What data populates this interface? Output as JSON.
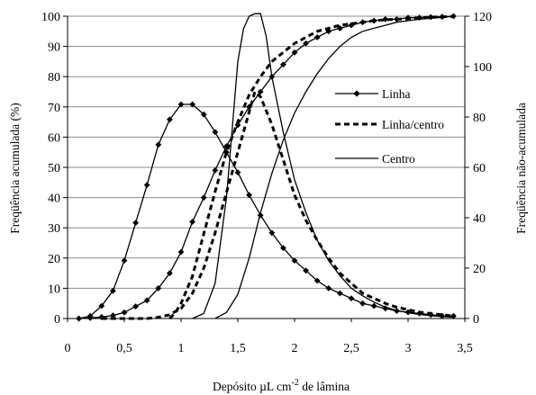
{
  "chart_data": {
    "type": "line",
    "xlabel": "Depósito µL cm-2 de lâmina",
    "xlabel_parts": {
      "pre": "Depósito µL cm",
      "sup": "-2",
      "post": " de lâmina"
    },
    "ylabel_left": "Freqüência acumulada (%)",
    "ylabel_right": "Freqüência não-acumulada",
    "xlim": [
      0,
      3.5
    ],
    "ylim_left": [
      0,
      100
    ],
    "ylim_right": [
      0,
      120
    ],
    "x_ticks": [
      "0",
      "0,5",
      "1",
      "1,5",
      "2",
      "2,5",
      "3",
      "3,5"
    ],
    "y_left_ticks": [
      "0",
      "10",
      "20",
      "30",
      "40",
      "50",
      "60",
      "70",
      "80",
      "90",
      "100"
    ],
    "y_right_ticks": [
      "0",
      "20",
      "40",
      "60",
      "80",
      "100",
      "120"
    ],
    "grid": "horizontal",
    "legend_position": "right",
    "legend": [
      "Linha",
      "Linha/centro",
      "Centro"
    ],
    "series": [
      {
        "name": "Linha",
        "style": "solid-diamond",
        "axis": "left",
        "kind": "cumulative",
        "x": [
          0.1,
          0.2,
          0.3,
          0.4,
          0.5,
          0.6,
          0.7,
          0.8,
          0.9,
          1.0,
          1.1,
          1.2,
          1.3,
          1.4,
          1.5,
          1.6,
          1.7,
          1.8,
          1.9,
          2.0,
          2.1,
          2.2,
          2.3,
          2.4,
          2.5,
          2.6,
          2.7,
          2.8,
          2.9,
          3.0,
          3.1,
          3.2,
          3.3,
          3.4
        ],
        "y": [
          0,
          0.2,
          0.5,
          1,
          2,
          4,
          6,
          10,
          15,
          22,
          32,
          40,
          49,
          57,
          64,
          70,
          75,
          80,
          84,
          88,
          91,
          93,
          95,
          96,
          97,
          98,
          98.5,
          99,
          99,
          99.5,
          99.5,
          99.7,
          99.8,
          100
        ]
      },
      {
        "name": "Linha",
        "style": "solid-diamond",
        "axis": "right",
        "kind": "frequency",
        "x": [
          0.1,
          0.2,
          0.3,
          0.4,
          0.5,
          0.6,
          0.7,
          0.8,
          0.9,
          1.0,
          1.1,
          1.2,
          1.3,
          1.4,
          1.5,
          1.6,
          1.7,
          1.8,
          1.9,
          2.0,
          2.1,
          2.2,
          2.3,
          2.4,
          2.5,
          2.6,
          2.7,
          2.8,
          2.9,
          3.0,
          3.1,
          3.2,
          3.3,
          3.4
        ],
        "y": [
          0,
          1,
          5,
          11,
          23,
          38,
          53,
          69,
          79,
          85,
          85,
          81,
          74,
          66,
          58,
          49,
          41,
          34,
          28,
          23,
          19,
          15,
          12,
          10,
          8,
          6,
          5,
          4,
          3,
          2.5,
          2,
          1.5,
          1,
          1
        ]
      },
      {
        "name": "Linha/centro",
        "style": "dashed",
        "axis": "left",
        "kind": "cumulative",
        "x": [
          0.9,
          0.95,
          1.0,
          1.1,
          1.2,
          1.3,
          1.4,
          1.5,
          1.6,
          1.7,
          1.8,
          1.9,
          2.0,
          2.1,
          2.2,
          2.3,
          2.4,
          2.5,
          2.6,
          2.7,
          2.8,
          2.9,
          3.0,
          3.1,
          3.2,
          3.3,
          3.4
        ],
        "y": [
          0,
          2,
          5,
          14,
          28,
          42,
          55,
          65,
          74,
          80,
          85,
          88,
          91,
          93,
          95,
          96,
          97,
          97.5,
          98,
          98.5,
          98.8,
          99,
          99.2,
          99.5,
          99.7,
          99.8,
          99.9
        ]
      },
      {
        "name": "Linha/centro",
        "style": "dashed",
        "axis": "right",
        "kind": "frequency",
        "x": [
          0.3,
          0.5,
          0.7,
          0.8,
          0.9,
          1.0,
          1.1,
          1.2,
          1.3,
          1.4,
          1.5,
          1.6,
          1.65,
          1.7,
          1.8,
          1.9,
          2.0,
          2.1,
          2.2,
          2.3,
          2.4,
          2.5,
          2.6,
          2.7,
          2.8,
          2.9,
          3.0,
          3.1,
          3.2,
          3.3,
          3.4
        ],
        "y": [
          0,
          0,
          0,
          0.5,
          1.5,
          4,
          10,
          20,
          34,
          50,
          66,
          82,
          90,
          88,
          77,
          63,
          49,
          39,
          31,
          24,
          18,
          14,
          10,
          8,
          6,
          4.5,
          3.5,
          2.5,
          2,
          1.5,
          1
        ]
      },
      {
        "name": "Centro",
        "style": "solid",
        "axis": "left",
        "kind": "cumulative",
        "x": [
          1.3,
          1.4,
          1.5,
          1.6,
          1.7,
          1.8,
          1.9,
          2.0,
          2.1,
          2.2,
          2.3,
          2.4,
          2.5,
          2.6,
          2.7,
          2.8,
          2.9,
          3.0,
          3.1,
          3.2,
          3.3,
          3.4
        ],
        "y": [
          0,
          2,
          8,
          20,
          35,
          48,
          59,
          68,
          75,
          81,
          86,
          90,
          93,
          95,
          96,
          97,
          98,
          98.5,
          99,
          99.3,
          99.6,
          100
        ]
      },
      {
        "name": "Centro",
        "style": "solid",
        "axis": "right",
        "kind": "frequency",
        "x": [
          1.1,
          1.2,
          1.3,
          1.4,
          1.5,
          1.55,
          1.6,
          1.65,
          1.7,
          1.75,
          1.8,
          1.9,
          2.0,
          2.1,
          2.2,
          2.3,
          2.4,
          2.5,
          2.6,
          2.7,
          2.8,
          2.9,
          3.0,
          3.1,
          3.2,
          3.3,
          3.4
        ],
        "y": [
          0,
          2,
          14,
          48,
          102,
          115,
          120,
          121,
          121,
          112,
          96,
          74,
          55,
          42,
          31,
          23,
          17,
          12,
          9,
          6.5,
          4.5,
          3.2,
          2.3,
          1.6,
          1.1,
          0.8,
          0.5
        ]
      }
    ]
  }
}
